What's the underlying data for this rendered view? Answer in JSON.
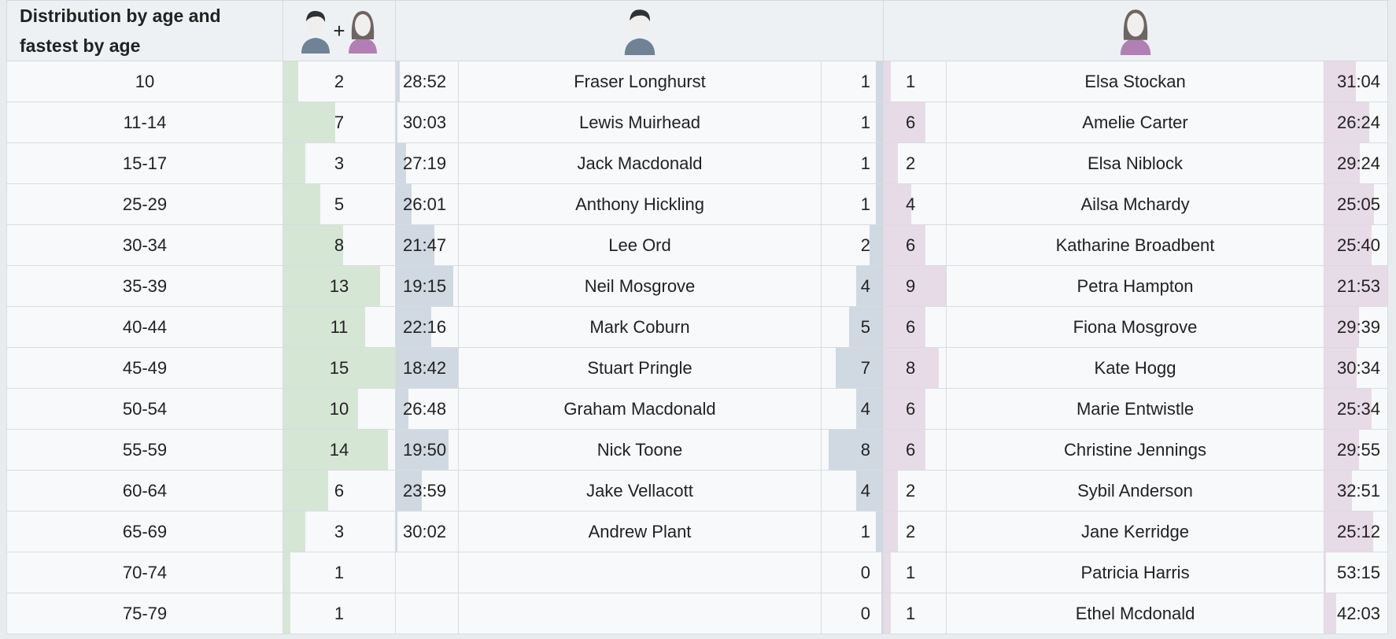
{
  "header": {
    "title": "Distribution by age and fastest by age",
    "total_icon": "man-plus-woman-icon",
    "plus": "+",
    "men_icon": "man-avatar-icon",
    "women_icon": "woman-avatar-icon"
  },
  "colors": {
    "total_bar": "#d6e6d5",
    "men_bar": "#d0d9e2",
    "women_bar": "#e7dbe7"
  },
  "rows": [
    {
      "age": "10",
      "total": 2,
      "men_time": "28:52",
      "men_name": "Fraser Longhurst",
      "men_count": 1,
      "women_count": 1,
      "women_name": "Elsa Stockan",
      "women_time": "31:04"
    },
    {
      "age": "11-14",
      "total": 7,
      "men_time": "30:03",
      "men_name": "Lewis Muirhead",
      "men_count": 1,
      "women_count": 6,
      "women_name": "Amelie Carter",
      "women_time": "26:24"
    },
    {
      "age": "15-17",
      "total": 3,
      "men_time": "27:19",
      "men_name": "Jack Macdonald",
      "men_count": 1,
      "women_count": 2,
      "women_name": "Elsa Niblock",
      "women_time": "29:24"
    },
    {
      "age": "25-29",
      "total": 5,
      "men_time": "26:01",
      "men_name": "Anthony Hickling",
      "men_count": 1,
      "women_count": 4,
      "women_name": "Ailsa Mchardy",
      "women_time": "25:05"
    },
    {
      "age": "30-34",
      "total": 8,
      "men_time": "21:47",
      "men_name": "Lee Ord",
      "men_count": 2,
      "women_count": 6,
      "women_name": "Katharine Broadbent",
      "women_time": "25:40"
    },
    {
      "age": "35-39",
      "total": 13,
      "men_time": "19:15",
      "men_name": "Neil Mosgrove",
      "men_count": 4,
      "women_count": 9,
      "women_name": "Petra Hampton",
      "women_time": "21:53"
    },
    {
      "age": "40-44",
      "total": 11,
      "men_time": "22:16",
      "men_name": "Mark Coburn",
      "men_count": 5,
      "women_count": 6,
      "women_name": "Fiona Mosgrove",
      "women_time": "29:39"
    },
    {
      "age": "45-49",
      "total": 15,
      "men_time": "18:42",
      "men_name": "Stuart Pringle",
      "men_count": 7,
      "women_count": 8,
      "women_name": "Kate Hogg",
      "women_time": "30:34"
    },
    {
      "age": "50-54",
      "total": 10,
      "men_time": "26:48",
      "men_name": "Graham Macdonald",
      "men_count": 4,
      "women_count": 6,
      "women_name": "Marie Entwistle",
      "women_time": "25:34"
    },
    {
      "age": "55-59",
      "total": 14,
      "men_time": "19:50",
      "men_name": "Nick Toone",
      "men_count": 8,
      "women_count": 6,
      "women_name": "Christine Jennings",
      "women_time": "29:55"
    },
    {
      "age": "60-64",
      "total": 6,
      "men_time": "23:59",
      "men_name": "Jake Vellacott",
      "men_count": 4,
      "women_count": 2,
      "women_name": "Sybil Anderson",
      "women_time": "32:51"
    },
    {
      "age": "65-69",
      "total": 3,
      "men_time": "30:02",
      "men_name": "Andrew Plant",
      "men_count": 1,
      "women_count": 2,
      "women_name": "Jane Kerridge",
      "women_time": "25:12"
    },
    {
      "age": "70-74",
      "total": 1,
      "men_time": "",
      "men_name": "",
      "men_count": 0,
      "women_count": 1,
      "women_name": "Patricia Harris",
      "women_time": "53:15"
    },
    {
      "age": "75-79",
      "total": 1,
      "men_time": "",
      "men_name": "",
      "men_count": 0,
      "women_count": 1,
      "women_name": "Ethel Mcdonald",
      "women_time": "42:03"
    }
  ]
}
